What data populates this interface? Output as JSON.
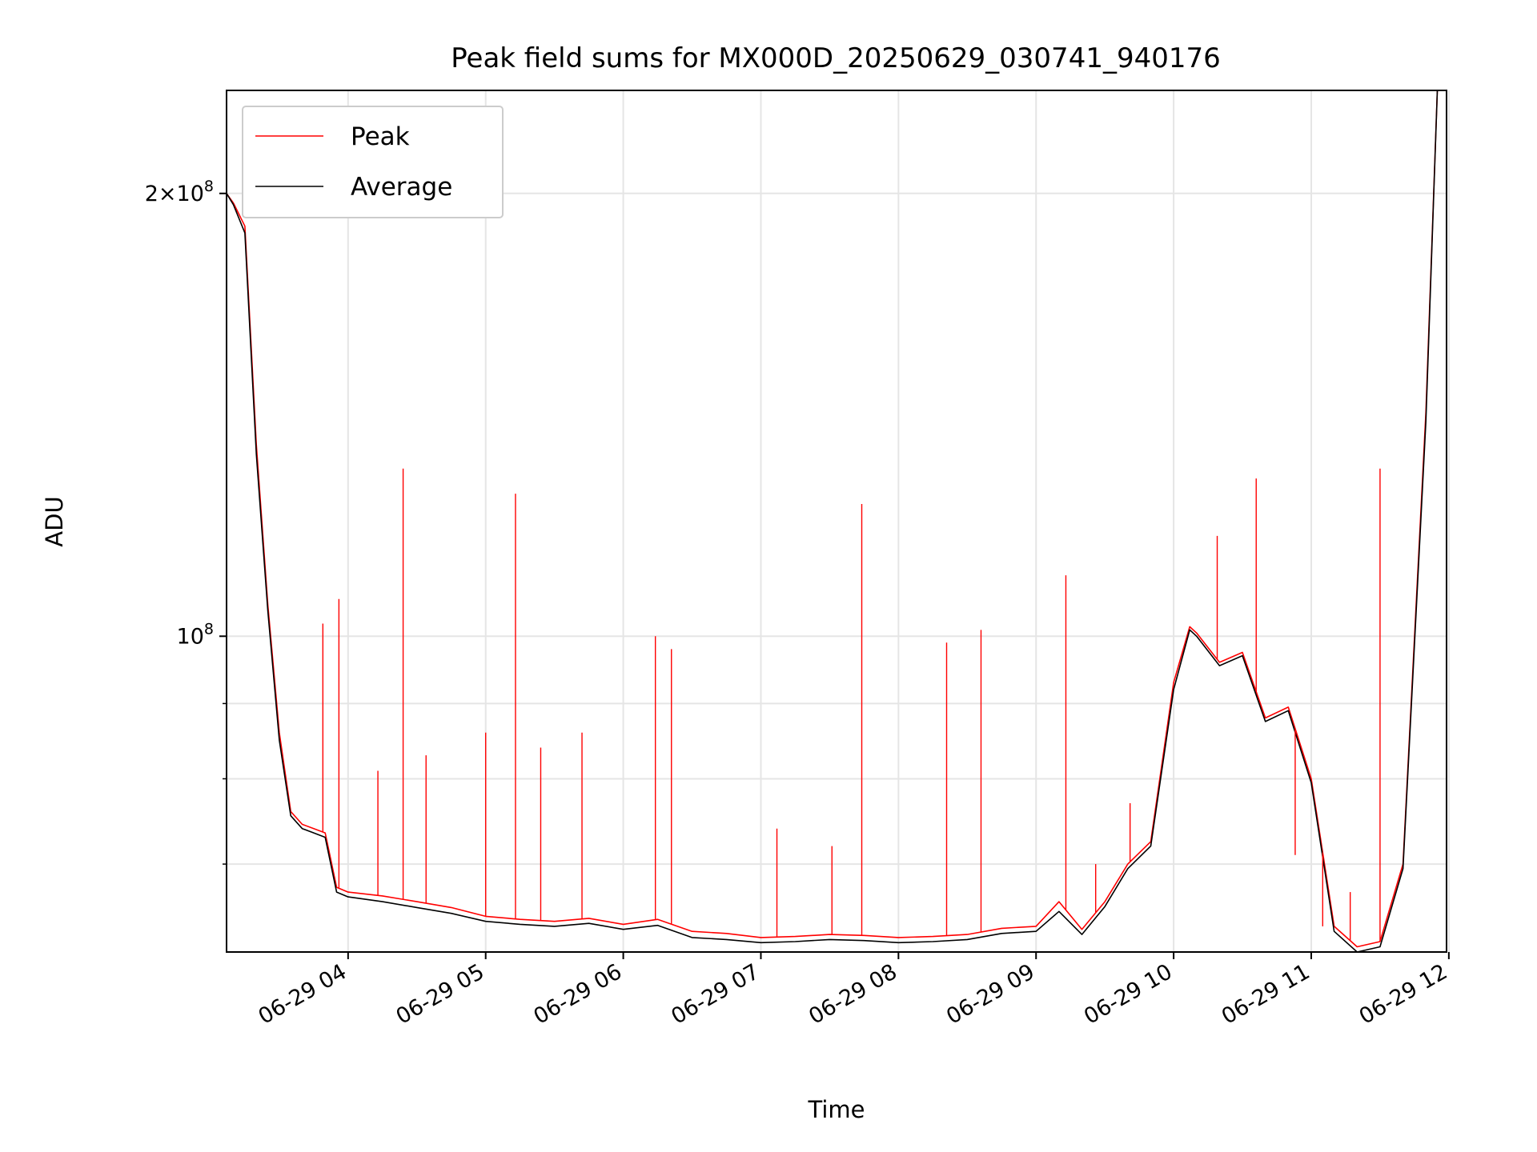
{
  "chart_data": {
    "type": "line",
    "title": "Peak field sums for MX000D_20250629_030741_940176",
    "xlabel": "Time",
    "ylabel": "ADU",
    "yscale": "log",
    "xlim": [
      "2025-06-29 03:07",
      "2025-06-29 11:59"
    ],
    "ylim": [
      61000000,
      235000000
    ],
    "grid": true,
    "legend_position": "upper left",
    "x_ticks": [
      "06-29 04",
      "06-29 05",
      "06-29 06",
      "06-29 07",
      "06-29 08",
      "06-29 09",
      "06-29 10",
      "06-29 11",
      "06-29 12"
    ],
    "y_tick_labels": [
      {
        "value": 100000000,
        "base": "10",
        "exp": "8",
        "mult": ""
      },
      {
        "value": 200000000,
        "base": "10",
        "exp": "8",
        "mult": "2×"
      }
    ],
    "y_minor_ticks": [
      60000000,
      70000000,
      80000000,
      90000000
    ],
    "series": [
      {
        "name": "Peak",
        "color": "#ff0000",
        "x": [
          "2025-06-29 03:07",
          "2025-06-29 03:10",
          "2025-06-29 03:15",
          "2025-06-29 03:20",
          "2025-06-29 03:25",
          "2025-06-29 03:30",
          "2025-06-29 03:35",
          "2025-06-29 03:40",
          "2025-06-29 03:45",
          "2025-06-29 03:50",
          "2025-06-29 03:55",
          "2025-06-29 04:00",
          "2025-06-29 04:15",
          "2025-06-29 04:30",
          "2025-06-29 04:45",
          "2025-06-29 05:00",
          "2025-06-29 05:15",
          "2025-06-29 05:30",
          "2025-06-29 05:45",
          "2025-06-29 06:00",
          "2025-06-29 06:15",
          "2025-06-29 06:30",
          "2025-06-29 06:45",
          "2025-06-29 07:00",
          "2025-06-29 07:15",
          "2025-06-29 07:30",
          "2025-06-29 07:45",
          "2025-06-29 08:00",
          "2025-06-29 08:15",
          "2025-06-29 08:30",
          "2025-06-29 08:45",
          "2025-06-29 09:00",
          "2025-06-29 09:10",
          "2025-06-29 09:20",
          "2025-06-29 09:30",
          "2025-06-29 09:40",
          "2025-06-29 09:50",
          "2025-06-29 10:00",
          "2025-06-29 10:07",
          "2025-06-29 10:10",
          "2025-06-29 10:20",
          "2025-06-29 10:30",
          "2025-06-29 10:40",
          "2025-06-29 10:50",
          "2025-06-29 11:00",
          "2025-06-29 11:10",
          "2025-06-29 11:20",
          "2025-06-29 11:30",
          "2025-06-29 11:40",
          "2025-06-29 11:50",
          "2025-06-29 11:55"
        ],
        "y": [
          200000000,
          197000000,
          190000000,
          135000000,
          105000000,
          86000000,
          76000000,
          74500000,
          74000000,
          73500000,
          67500000,
          67000000,
          66600000,
          66000000,
          65400000,
          64500000,
          64200000,
          64000000,
          64300000,
          63700000,
          64200000,
          63000000,
          62800000,
          62400000,
          62500000,
          62700000,
          62600000,
          62400000,
          62500000,
          62700000,
          63300000,
          63500000,
          66000000,
          63200000,
          66000000,
          70000000,
          72500000,
          93000000,
          101500000,
          100500000,
          96000000,
          97500000,
          88000000,
          89500000,
          80000000,
          63500000,
          61500000,
          62000000,
          70000000,
          142000000,
          235000000
        ],
        "spikes": [
          {
            "x": "2025-06-29 04:24",
            "y": 130000000
          },
          {
            "x": "2025-06-29 05:13",
            "y": 125000000
          },
          {
            "x": "2025-06-29 07:44",
            "y": 123000000
          },
          {
            "x": "2025-06-29 09:13",
            "y": 110000000
          },
          {
            "x": "2025-06-29 10:19",
            "y": 117000000
          },
          {
            "x": "2025-06-29 10:36",
            "y": 128000000
          },
          {
            "x": "2025-06-29 11:30",
            "y": 130000000
          },
          {
            "x": "2025-06-29 03:56",
            "y": 106000000
          },
          {
            "x": "2025-06-29 03:49",
            "y": 102000000
          },
          {
            "x": "2025-06-29 06:14",
            "y": 100000000
          },
          {
            "x": "2025-06-29 06:21",
            "y": 98000000
          },
          {
            "x": "2025-06-29 08:21",
            "y": 99000000
          },
          {
            "x": "2025-06-29 08:36",
            "y": 101000000
          },
          {
            "x": "2025-06-29 05:42",
            "y": 86000000
          },
          {
            "x": "2025-06-29 05:00",
            "y": 86000000
          },
          {
            "x": "2025-06-29 05:24",
            "y": 84000000
          },
          {
            "x": "2025-06-29 04:34",
            "y": 83000000
          },
          {
            "x": "2025-06-29 04:13",
            "y": 81000000
          },
          {
            "x": "2025-06-29 07:07",
            "y": 74000000
          },
          {
            "x": "2025-06-29 07:31",
            "y": 72000000
          },
          {
            "x": "2025-06-29 09:26",
            "y": 70000000
          },
          {
            "x": "2025-06-29 09:41",
            "y": 77000000
          },
          {
            "x": "2025-06-29 10:53",
            "y": 71000000
          },
          {
            "x": "2025-06-29 11:05",
            "y": 63500000
          },
          {
            "x": "2025-06-29 11:17",
            "y": 67000000
          }
        ]
      },
      {
        "name": "Average",
        "color": "#000000",
        "x": [
          "2025-06-29 03:07",
          "2025-06-29 03:10",
          "2025-06-29 03:15",
          "2025-06-29 03:20",
          "2025-06-29 03:25",
          "2025-06-29 03:30",
          "2025-06-29 03:35",
          "2025-06-29 03:40",
          "2025-06-29 03:45",
          "2025-06-29 03:50",
          "2025-06-29 03:55",
          "2025-06-29 04:00",
          "2025-06-29 04:15",
          "2025-06-29 04:30",
          "2025-06-29 04:45",
          "2025-06-29 05:00",
          "2025-06-29 05:15",
          "2025-06-29 05:30",
          "2025-06-29 05:45",
          "2025-06-29 06:00",
          "2025-06-29 06:15",
          "2025-06-29 06:30",
          "2025-06-29 06:45",
          "2025-06-29 07:00",
          "2025-06-29 07:15",
          "2025-06-29 07:30",
          "2025-06-29 07:45",
          "2025-06-29 08:00",
          "2025-06-29 08:15",
          "2025-06-29 08:30",
          "2025-06-29 08:45",
          "2025-06-29 09:00",
          "2025-06-29 09:10",
          "2025-06-29 09:20",
          "2025-06-29 09:30",
          "2025-06-29 09:40",
          "2025-06-29 09:50",
          "2025-06-29 10:00",
          "2025-06-29 10:07",
          "2025-06-29 10:10",
          "2025-06-29 10:20",
          "2025-06-29 10:30",
          "2025-06-29 10:40",
          "2025-06-29 10:50",
          "2025-06-29 11:00",
          "2025-06-29 11:10",
          "2025-06-29 11:20",
          "2025-06-29 11:30",
          "2025-06-29 11:40",
          "2025-06-29 11:50",
          "2025-06-29 11:55"
        ],
        "y": [
          200000000,
          196500000,
          188000000,
          133000000,
          104000000,
          85000000,
          75500000,
          74000000,
          73500000,
          73000000,
          67000000,
          66500000,
          66000000,
          65400000,
          64800000,
          64000000,
          63700000,
          63500000,
          63800000,
          63200000,
          63600000,
          62400000,
          62200000,
          61900000,
          62000000,
          62200000,
          62100000,
          61900000,
          62000000,
          62200000,
          62800000,
          63000000,
          65000000,
          62700000,
          65500000,
          69500000,
          72000000,
          92000000,
          101000000,
          100000000,
          95500000,
          97000000,
          87500000,
          89000000,
          79500000,
          63000000,
          61000000,
          61500000,
          69500000,
          140000000,
          235000000
        ]
      }
    ]
  }
}
